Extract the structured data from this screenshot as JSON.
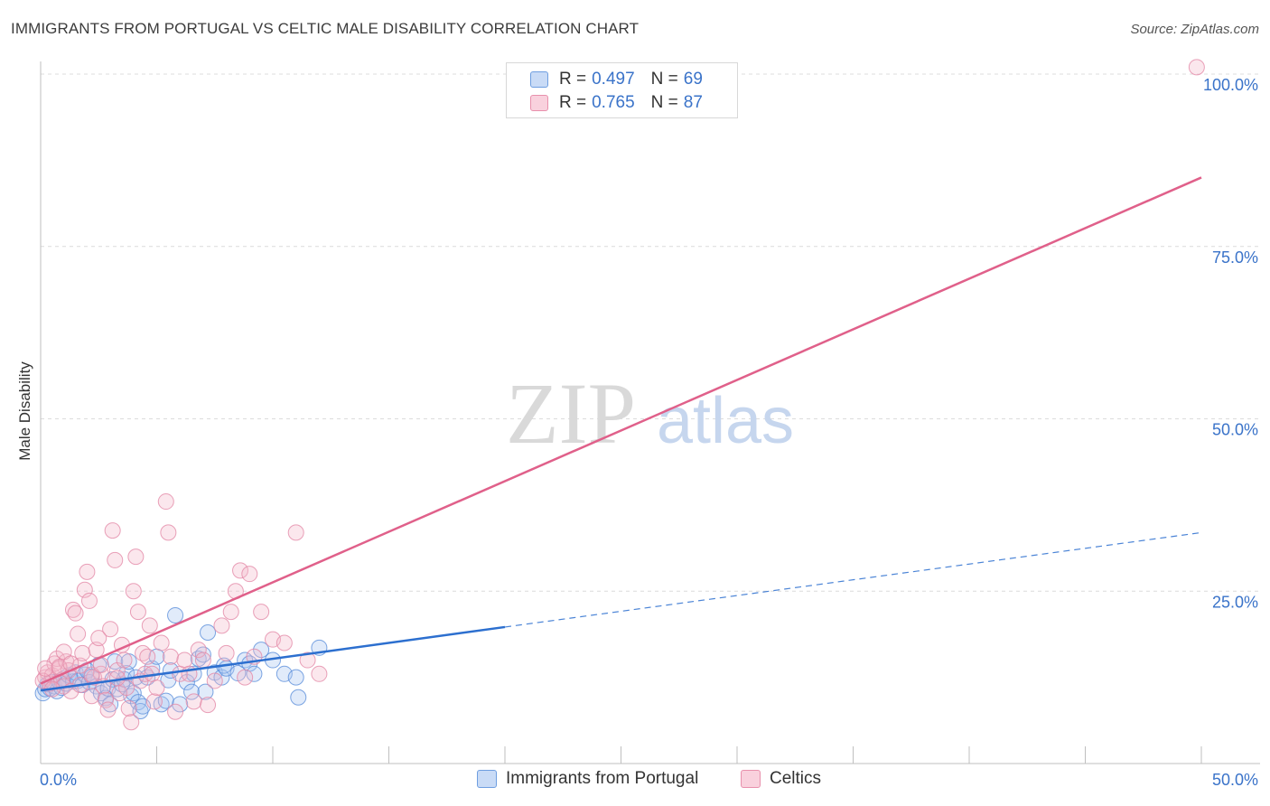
{
  "title": "IMMIGRANTS FROM PORTUGAL VS CELTIC MALE DISABILITY CORRELATION CHART",
  "source": "Source: ZipAtlas.com",
  "watermark": {
    "zip": "ZIP",
    "atlas": "atlas"
  },
  "colors": {
    "blue": "#5b8fdb",
    "blue_fill": "#a9c6f0",
    "blue_line": "#2c6fcf",
    "pink": "#e48aa8",
    "pink_fill": "#f4b9cb",
    "pink_line": "#e0608a",
    "axis_text": "#3a73c9",
    "grid": "#dcdcdc"
  },
  "legend": {
    "series": [
      {
        "r_label": "R =",
        "r_value": "0.497",
        "n_label": "N =",
        "n_value": "69"
      },
      {
        "r_label": "R =",
        "r_value": "0.765",
        "n_label": "N =",
        "n_value": "87"
      }
    ]
  },
  "bottom_legend": {
    "blue": "Immigrants from Portugal",
    "pink": "Celtics"
  },
  "chart_data": {
    "type": "scatter",
    "title": "IMMIGRANTS FROM PORTUGAL VS CELTIC MALE DISABILITY CORRELATION CHART",
    "xlabel": "",
    "ylabel": "Male Disability",
    "xlim": [
      0,
      50
    ],
    "ylim": [
      0,
      100
    ],
    "x_tick_labels": [
      "0.0%",
      "50.0%"
    ],
    "y_tick_labels": [
      "25.0%",
      "50.0%",
      "75.0%",
      "100.0%"
    ],
    "y_ticks": [
      25,
      50,
      75,
      100
    ],
    "series": [
      {
        "name": "Immigrants from Portugal",
        "r": 0.497,
        "n": 69,
        "trend": {
          "x0": 0,
          "y0": 10.6,
          "x1": 20,
          "y1": 19.8,
          "dash_x1": 50,
          "dash_y1": 33.5
        },
        "points": [
          [
            0.1,
            10.2
          ],
          [
            0.2,
            10.8
          ],
          [
            0.3,
            11.5
          ],
          [
            0.4,
            10.9
          ],
          [
            0.5,
            11.8
          ],
          [
            0.6,
            11.2
          ],
          [
            0.7,
            10.5
          ],
          [
            0.8,
            11.9
          ],
          [
            0.9,
            11.0
          ],
          [
            1.0,
            12.3
          ],
          [
            1.1,
            11.6
          ],
          [
            1.2,
            12.8
          ],
          [
            1.4,
            11.9
          ],
          [
            1.5,
            13.2
          ],
          [
            1.6,
            12.0
          ],
          [
            1.8,
            11.4
          ],
          [
            1.9,
            12.9
          ],
          [
            2.0,
            13.5
          ],
          [
            2.1,
            11.8
          ],
          [
            2.2,
            12.6
          ],
          [
            2.4,
            11.2
          ],
          [
            2.5,
            14.3
          ],
          [
            2.6,
            10.2
          ],
          [
            2.8,
            9.5
          ],
          [
            2.9,
            10.9
          ],
          [
            3.0,
            8.6
          ],
          [
            3.1,
            12.2
          ],
          [
            3.2,
            14.8
          ],
          [
            3.3,
            10.8
          ],
          [
            3.5,
            11.5
          ],
          [
            3.6,
            12.2
          ],
          [
            3.7,
            13.1
          ],
          [
            3.8,
            14.8
          ],
          [
            3.9,
            9.8
          ],
          [
            4.0,
            10.2
          ],
          [
            4.1,
            12.5
          ],
          [
            4.2,
            8.9
          ],
          [
            4.3,
            7.6
          ],
          [
            4.4,
            8.3
          ],
          [
            4.6,
            12.5
          ],
          [
            4.8,
            13.8
          ],
          [
            5.0,
            15.5
          ],
          [
            5.2,
            8.6
          ],
          [
            5.4,
            9.1
          ],
          [
            5.5,
            12.1
          ],
          [
            5.6,
            13.5
          ],
          [
            5.8,
            21.5
          ],
          [
            6.0,
            8.6
          ],
          [
            6.3,
            11.8
          ],
          [
            6.5,
            10.4
          ],
          [
            6.6,
            13.0
          ],
          [
            6.8,
            15.2
          ],
          [
            7.0,
            15.8
          ],
          [
            7.1,
            10.4
          ],
          [
            7.2,
            19.0
          ],
          [
            7.5,
            13.2
          ],
          [
            7.8,
            12.5
          ],
          [
            7.9,
            14.2
          ],
          [
            8.0,
            13.8
          ],
          [
            8.5,
            13.1
          ],
          [
            8.8,
            15.0
          ],
          [
            9.0,
            14.5
          ],
          [
            9.2,
            13.0
          ],
          [
            9.5,
            16.5
          ],
          [
            10.0,
            15.0
          ],
          [
            10.5,
            13.0
          ],
          [
            11.0,
            12.5
          ],
          [
            11.1,
            9.6
          ],
          [
            12.0,
            16.8
          ]
        ]
      },
      {
        "name": "Celtics",
        "r": 0.765,
        "n": 87,
        "trend": {
          "x0": 0,
          "y0": 11.6,
          "x1": 50,
          "y1": 85.0
        },
        "points": [
          [
            0.2,
            12.5
          ],
          [
            0.3,
            13.2
          ],
          [
            0.4,
            11.6
          ],
          [
            0.5,
            12.8
          ],
          [
            0.6,
            14.5
          ],
          [
            0.7,
            15.2
          ],
          [
            0.8,
            13.8
          ],
          [
            0.9,
            12.1
          ],
          [
            1.0,
            11.2
          ],
          [
            1.1,
            14.8
          ],
          [
            1.2,
            13.5
          ],
          [
            1.3,
            10.5
          ],
          [
            1.4,
            22.3
          ],
          [
            1.5,
            21.8
          ],
          [
            1.6,
            18.8
          ],
          [
            1.7,
            14.2
          ],
          [
            1.8,
            16.0
          ],
          [
            1.9,
            25.2
          ],
          [
            2.0,
            27.8
          ],
          [
            2.1,
            23.6
          ],
          [
            2.2,
            9.8
          ],
          [
            2.3,
            12.5
          ],
          [
            2.4,
            16.5
          ],
          [
            2.5,
            18.2
          ],
          [
            2.6,
            13.0
          ],
          [
            2.7,
            11.2
          ],
          [
            2.8,
            9.2
          ],
          [
            2.9,
            7.8
          ],
          [
            3.0,
            19.5
          ],
          [
            3.1,
            33.8
          ],
          [
            3.2,
            29.5
          ],
          [
            3.3,
            13.5
          ],
          [
            3.4,
            10.2
          ],
          [
            3.5,
            17.2
          ],
          [
            3.6,
            15.0
          ],
          [
            3.7,
            11.0
          ],
          [
            3.8,
            8.0
          ],
          [
            3.9,
            6.0
          ],
          [
            4.0,
            25.0
          ],
          [
            4.1,
            30.0
          ],
          [
            4.2,
            22.0
          ],
          [
            4.3,
            12.0
          ],
          [
            4.4,
            16.0
          ],
          [
            4.5,
            13.0
          ],
          [
            4.6,
            15.5
          ],
          [
            4.7,
            20.0
          ],
          [
            4.8,
            13.0
          ],
          [
            4.9,
            9.0
          ],
          [
            5.0,
            11.0
          ],
          [
            5.2,
            17.5
          ],
          [
            5.4,
            38.0
          ],
          [
            5.5,
            33.5
          ],
          [
            5.6,
            15.5
          ],
          [
            5.8,
            7.5
          ],
          [
            6.0,
            13.0
          ],
          [
            6.2,
            15.0
          ],
          [
            6.4,
            13.0
          ],
          [
            6.6,
            9.0
          ],
          [
            6.8,
            16.5
          ],
          [
            7.0,
            15.0
          ],
          [
            7.2,
            8.5
          ],
          [
            7.5,
            12.0
          ],
          [
            7.8,
            20.0
          ],
          [
            8.0,
            16.0
          ],
          [
            8.2,
            22.0
          ],
          [
            8.4,
            25.0
          ],
          [
            8.6,
            28.0
          ],
          [
            8.8,
            12.5
          ],
          [
            9.0,
            27.5
          ],
          [
            9.2,
            15.5
          ],
          [
            9.5,
            22.0
          ],
          [
            10.0,
            18.0
          ],
          [
            10.5,
            17.5
          ],
          [
            11.0,
            33.5
          ],
          [
            11.5,
            15.0
          ],
          [
            12.0,
            13.0
          ],
          [
            0.1,
            12.0
          ],
          [
            0.2,
            13.8
          ],
          [
            0.5,
            10.8
          ],
          [
            0.8,
            14.0
          ],
          [
            1.0,
            16.2
          ],
          [
            1.3,
            14.5
          ],
          [
            1.7,
            11.4
          ],
          [
            2.2,
            12.9
          ],
          [
            2.6,
            14.3
          ],
          [
            3.3,
            12.4
          ],
          [
            49.8,
            101.0
          ]
        ]
      }
    ]
  }
}
